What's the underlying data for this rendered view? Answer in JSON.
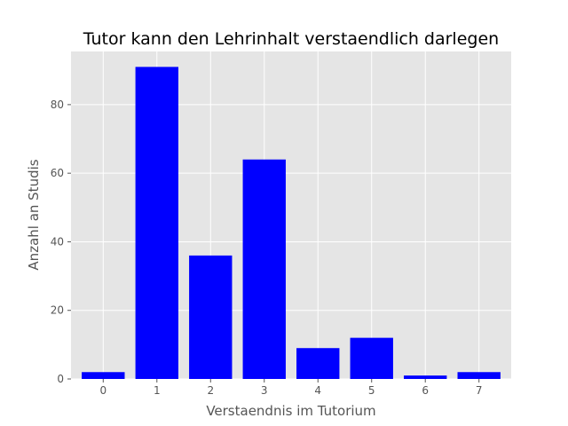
{
  "chart_data": {
    "type": "bar",
    "title": "Tutor kann den Lehrinhalt verstaendlich darlegen",
    "xlabel": "Verstaendnis im Tutorium",
    "ylabel": "Anzahl an Studis",
    "categories": [
      "0",
      "1",
      "2",
      "3",
      "4",
      "5",
      "6",
      "7"
    ],
    "values": [
      2,
      91,
      36,
      64,
      9,
      12,
      1,
      2
    ],
    "ylim": [
      0,
      95.5
    ],
    "yticks": [
      0,
      20,
      40,
      60,
      80
    ],
    "grid": true,
    "legend": "none",
    "bar_color": "#0000ff",
    "background_color": "#e5e5e5"
  }
}
